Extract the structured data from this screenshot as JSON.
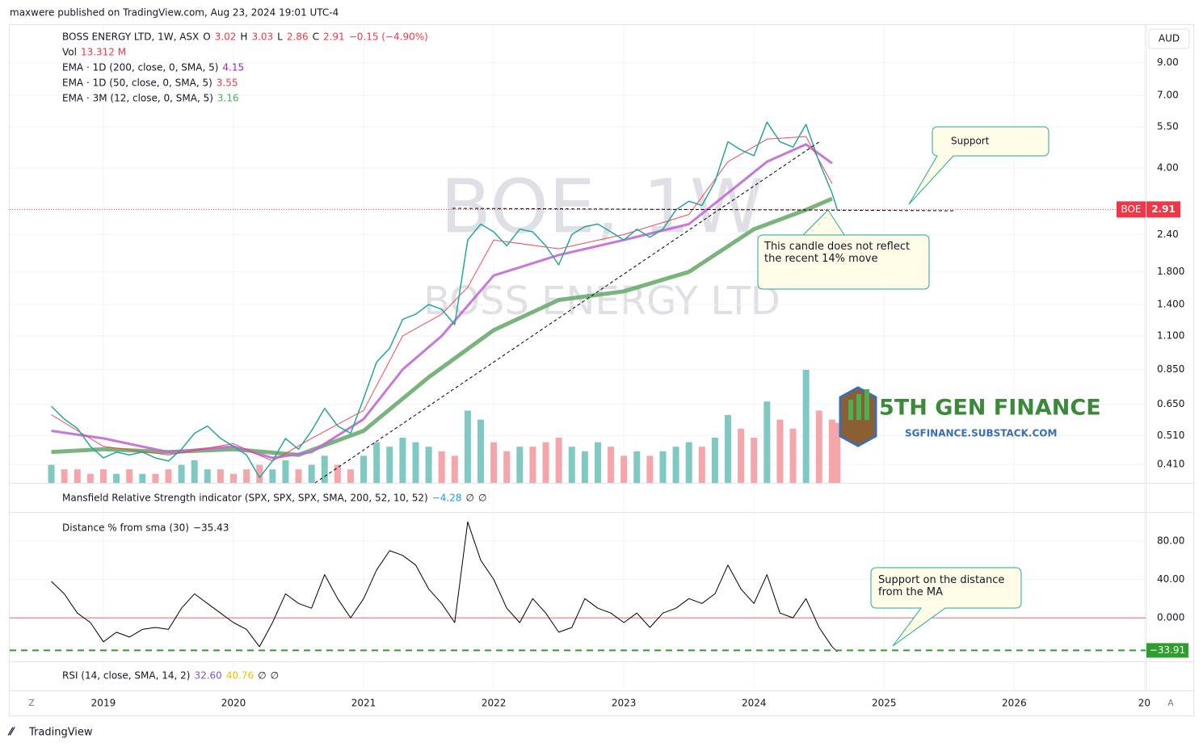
{
  "header": {
    "published": "maxwere published on TradingView.com, Aug 23, 2024 19:01 UTC-4",
    "currency": "AUD",
    "symbol": "BOE",
    "brand": "TradingView",
    "scale_btn_left": "Z",
    "scale_btn_right": "A"
  },
  "legend": {
    "title": "BOSS ENERGY LTD, 1W, ASX",
    "o": "O",
    "ov": "3.02",
    "h": "H",
    "hv": "3.03",
    "l": "L",
    "lv": "2.86",
    "c": "C",
    "cv": "2.91",
    "chg": "−0.15 (−4.90%)",
    "vol": "Vol",
    "volv": "13.312 M",
    "ema1": "EMA · 1D (200, close, 0, SMA, 5)",
    "ema1v": "4.15",
    "ema2": "EMA · 1D (50, close, 0, SMA, 5)",
    "ema2v": "3.55",
    "ema3": "EMA · 3M (12, close, 0, SMA, 5)",
    "ema3v": "3.16",
    "mansfield": "Mansfield Relative Strength indicator (SPX, SPX, SPX, SMA, 200, 52, 10, 52)",
    "mansfieldv": "−4.28",
    "dist": "Distance % from sma (30)",
    "distv": "−35.43",
    "rsi": "RSI (14, close, SMA, 14, 2)",
    "rsiv1": "32.60",
    "rsiv2": "40.76",
    "na": "∅"
  },
  "watermark": {
    "line1": "BOE, 1W",
    "line2": "BOSS ENERGY LTD"
  },
  "logo": {
    "name": "5TH GEN FINANCE",
    "url": "SGFINANCE.SUBSTACK.COM"
  },
  "annotations": {
    "support": "Support",
    "candle": "This candle does not reflect the recent 14% move",
    "ma": "Support on the distance from the MA"
  },
  "chart_data": [
    {
      "type": "line",
      "log_scale": true,
      "xlim": [
        2018.28,
        2027.01
      ],
      "ylim": [
        0.355,
        12.1
      ],
      "xticks": [
        2019,
        2020,
        2021,
        2022,
        2023,
        2024,
        2025,
        2026,
        {
          "value": 2027,
          "label": "20"
        }
      ],
      "yticks": [
        {
          "value": 9,
          "label": "9.00"
        },
        {
          "value": 7,
          "label": "7.00"
        },
        {
          "value": 5.5,
          "label": "5.50"
        },
        {
          "value": 4,
          "label": "4.00"
        },
        {
          "value": 2.4,
          "label": "2.40"
        },
        {
          "value": 1.8,
          "label": "1.800"
        },
        {
          "value": 1.4,
          "label": "1.400"
        },
        {
          "value": 1.1,
          "label": "1.100"
        },
        {
          "value": 0.85,
          "label": "0.850"
        },
        {
          "value": 0.65,
          "label": "0.650"
        },
        {
          "value": 0.51,
          "label": "0.510"
        },
        {
          "value": 0.41,
          "label": "0.410"
        }
      ],
      "last_price": 2.91,
      "series": [
        {
          "name": "BOE",
          "color": "#26a69a",
          "width": 1.5,
          "x": [
            2018.6,
            2018.7,
            2018.8,
            2018.9,
            2019.0,
            2019.1,
            2019.2,
            2019.3,
            2019.4,
            2019.5,
            2019.6,
            2019.7,
            2019.8,
            2019.9,
            2020.0,
            2020.1,
            2020.2,
            2020.3,
            2020.4,
            2020.5,
            2020.6,
            2020.7,
            2020.8,
            2020.9,
            2021.0,
            2021.1,
            2021.2,
            2021.3,
            2021.4,
            2021.5,
            2021.6,
            2021.7,
            2021.8,
            2021.9,
            2022.0,
            2022.1,
            2022.2,
            2022.3,
            2022.4,
            2022.5,
            2022.6,
            2022.7,
            2022.8,
            2022.9,
            2023.0,
            2023.1,
            2023.2,
            2023.3,
            2023.4,
            2023.5,
            2023.6,
            2023.7,
            2023.8,
            2023.9,
            2024.0,
            2024.1,
            2024.2,
            2024.3,
            2024.4,
            2024.5,
            2024.6,
            2024.64
          ],
          "values": [
            0.64,
            0.58,
            0.54,
            0.47,
            0.43,
            0.45,
            0.44,
            0.45,
            0.43,
            0.42,
            0.46,
            0.52,
            0.55,
            0.5,
            0.47,
            0.44,
            0.37,
            0.42,
            0.5,
            0.46,
            0.53,
            0.63,
            0.55,
            0.52,
            0.68,
            0.9,
            1.0,
            1.25,
            1.3,
            1.4,
            1.35,
            1.2,
            2.3,
            2.6,
            2.45,
            2.2,
            2.5,
            2.45,
            2.2,
            1.9,
            2.4,
            2.55,
            2.6,
            2.45,
            2.3,
            2.5,
            2.35,
            2.5,
            2.9,
            3.1,
            3.0,
            3.6,
            4.9,
            4.6,
            4.4,
            5.7,
            4.9,
            4.7,
            5.6,
            4.2,
            3.3,
            2.91
          ]
        },
        {
          "name": "EMA 1D 50",
          "color": "#f23645",
          "width": 1,
          "x": [
            2018.6,
            2019.0,
            2019.5,
            2020.0,
            2020.3,
            2020.6,
            2021.0,
            2021.3,
            2021.6,
            2021.8,
            2022.0,
            2022.5,
            2023.0,
            2023.5,
            2023.8,
            2024.1,
            2024.4,
            2024.6
          ],
          "values": [
            0.6,
            0.47,
            0.44,
            0.48,
            0.42,
            0.5,
            0.62,
            1.1,
            1.3,
            1.6,
            2.3,
            2.15,
            2.4,
            2.8,
            4.2,
            5.0,
            5.1,
            3.55
          ]
        },
        {
          "name": "EMA 1D 200",
          "color": "#c069d6",
          "width": 3,
          "x": [
            2018.6,
            2019.0,
            2019.5,
            2020.0,
            2020.3,
            2020.6,
            2021.0,
            2021.3,
            2021.6,
            2022.0,
            2022.5,
            2023.0,
            2023.5,
            2023.8,
            2024.1,
            2024.4,
            2024.6
          ],
          "values": [
            0.53,
            0.5,
            0.45,
            0.47,
            0.43,
            0.45,
            0.58,
            0.85,
            1.1,
            1.75,
            2.05,
            2.3,
            2.6,
            3.3,
            4.2,
            4.8,
            4.15
          ]
        },
        {
          "name": "EMA 3M 12",
          "color": "#6aac6e",
          "width": 5,
          "x": [
            2018.6,
            2019.0,
            2019.5,
            2020.0,
            2020.5,
            2021.0,
            2021.5,
            2022.0,
            2022.5,
            2023.0,
            2023.5,
            2024.0,
            2024.4,
            2024.6
          ],
          "values": [
            0.45,
            0.46,
            0.45,
            0.46,
            0.44,
            0.53,
            0.8,
            1.15,
            1.45,
            1.55,
            1.8,
            2.5,
            2.9,
            3.16
          ]
        }
      ],
      "volume": {
        "values": [
          4,
          3,
          3,
          2,
          3,
          2,
          3,
          2,
          2,
          3,
          4,
          5,
          3,
          3,
          2,
          3,
          4,
          3,
          5,
          3,
          4,
          6,
          4,
          3,
          6,
          9,
          8,
          10,
          9,
          8,
          7,
          6,
          16,
          14,
          9,
          7,
          8,
          8,
          9,
          10,
          8,
          7,
          9,
          8,
          6,
          7,
          6,
          7,
          8,
          9,
          8,
          10,
          15,
          12,
          10,
          18,
          14,
          12,
          25,
          16,
          14,
          13.312
        ],
        "up_color": "#80c9c2",
        "down_color": "#f4a6ab"
      }
    },
    {
      "type": "line",
      "ylim": [
        -44.5,
        108.6
      ],
      "yticks": [
        {
          "value": 80,
          "label": "80.00"
        },
        {
          "value": 40,
          "label": "40.00"
        },
        {
          "value": 0,
          "label": "0.000"
        }
      ],
      "support": {
        "value": -33.91,
        "label": "−33.91"
      },
      "series": [
        {
          "name": "Distance",
          "color": "#000000",
          "x": [
            2018.6,
            2018.7,
            2018.8,
            2018.9,
            2019.0,
            2019.1,
            2019.2,
            2019.3,
            2019.4,
            2019.5,
            2019.6,
            2019.7,
            2019.8,
            2019.9,
            2020.0,
            2020.1,
            2020.2,
            2020.3,
            2020.4,
            2020.5,
            2020.6,
            2020.7,
            2020.8,
            2020.9,
            2021.0,
            2021.1,
            2021.2,
            2021.3,
            2021.4,
            2021.5,
            2021.6,
            2021.7,
            2021.8,
            2021.9,
            2022.0,
            2022.1,
            2022.2,
            2022.3,
            2022.4,
            2022.5,
            2022.6,
            2022.7,
            2022.8,
            2022.9,
            2023.0,
            2023.1,
            2023.2,
            2023.3,
            2023.4,
            2023.5,
            2023.6,
            2023.7,
            2023.8,
            2023.9,
            2024.0,
            2024.1,
            2024.2,
            2024.3,
            2024.4,
            2024.5,
            2024.6,
            2024.64
          ],
          "values": [
            38,
            25,
            5,
            -5,
            -25,
            -15,
            -20,
            -12,
            -10,
            -12,
            10,
            25,
            15,
            5,
            -5,
            -12,
            -30,
            -5,
            25,
            15,
            10,
            45,
            20,
            0,
            20,
            50,
            70,
            65,
            55,
            30,
            15,
            -5,
            100,
            60,
            40,
            10,
            -5,
            20,
            5,
            -15,
            -10,
            20,
            10,
            5,
            -5,
            5,
            -10,
            5,
            10,
            20,
            15,
            25,
            55,
            30,
            15,
            45,
            5,
            0,
            20,
            -10,
            -30,
            -35.43
          ]
        }
      ]
    }
  ]
}
